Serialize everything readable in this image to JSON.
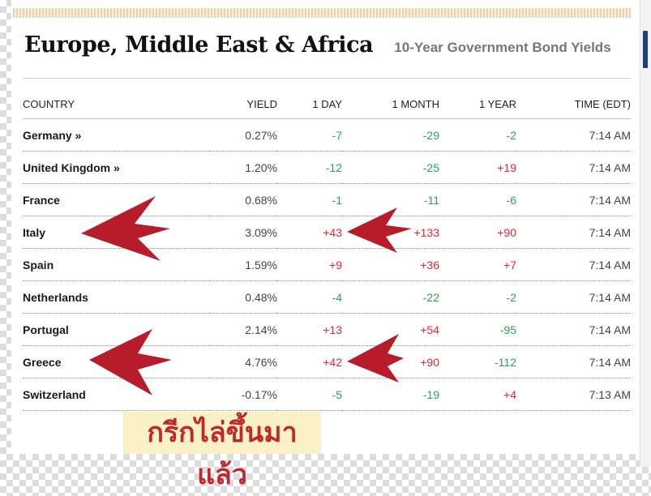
{
  "header": {
    "title": "Europe, Middle East & Africa",
    "subtitle": "10-Year Government Bond Yields"
  },
  "table": {
    "columns": [
      "COUNTRY",
      "YIELD",
      "1 DAY",
      "1 MONTH",
      "1 YEAR",
      "TIME (EDT)"
    ],
    "rows": [
      {
        "country": "Germany »",
        "yield": "0.27%",
        "day": "-7",
        "month": "-29",
        "year": "-2",
        "time": "7:14 AM"
      },
      {
        "country": "United Kingdom »",
        "yield": "1.20%",
        "day": "-12",
        "month": "-25",
        "year": "+19",
        "time": "7:14 AM"
      },
      {
        "country": "France",
        "yield": "0.68%",
        "day": "-1",
        "month": "-11",
        "year": "-6",
        "time": "7:14 AM"
      },
      {
        "country": "Italy",
        "yield": "3.09%",
        "day": "+43",
        "month": "+133",
        "year": "+90",
        "time": "7:14 AM"
      },
      {
        "country": "Spain",
        "yield": "1.59%",
        "day": "+9",
        "month": "+36",
        "year": "+7",
        "time": "7:14 AM"
      },
      {
        "country": "Netherlands",
        "yield": "0.48%",
        "day": "-4",
        "month": "-22",
        "year": "-2",
        "time": "7:14 AM"
      },
      {
        "country": "Portugal",
        "yield": "2.14%",
        "day": "+13",
        "month": "+54",
        "year": "-95",
        "time": "7:14 AM"
      },
      {
        "country": "Greece",
        "yield": "4.76%",
        "day": "+42",
        "month": "+90",
        "year": "-112",
        "time": "7:14 AM"
      },
      {
        "country": "Switzerland",
        "yield": "-0.17%",
        "day": "-5",
        "month": "-19",
        "year": "+4",
        "time": "7:13 AM"
      }
    ]
  },
  "annotation": {
    "text": "กรีกไล่ขึ้นมาแล้ว",
    "color": "#c0282e",
    "arrow_color": "#b71c2a"
  },
  "colors": {
    "positive": "#e3272d",
    "negative": "#27a552"
  }
}
